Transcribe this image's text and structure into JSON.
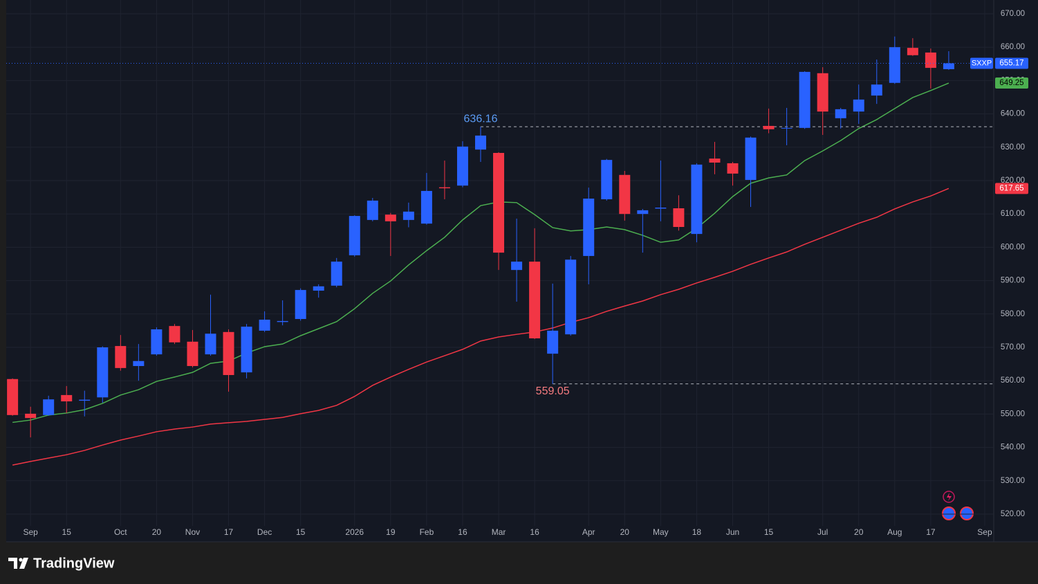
{
  "chart_data": {
    "type": "candlestick",
    "branding": "TradingView",
    "grid": true,
    "xlim": [
      -0.35,
      54.5
    ],
    "xticks": [
      {
        "value": 1,
        "label": "Sep"
      },
      {
        "value": 3,
        "label": "15"
      },
      {
        "value": 6,
        "label": "Oct"
      },
      {
        "value": 8,
        "label": "20"
      },
      {
        "value": 10,
        "label": "Nov"
      },
      {
        "value": 12,
        "label": "17"
      },
      {
        "value": 14,
        "label": "Dec"
      },
      {
        "value": 16,
        "label": "15"
      },
      {
        "value": 19,
        "label": "2026"
      },
      {
        "value": 21,
        "label": "19"
      },
      {
        "value": 23,
        "label": "Feb"
      },
      {
        "value": 25,
        "label": "16"
      },
      {
        "value": 27,
        "label": "Mar"
      },
      {
        "value": 29,
        "label": "16"
      },
      {
        "value": 32,
        "label": "Apr"
      },
      {
        "value": 34,
        "label": "20"
      },
      {
        "value": 36,
        "label": "May"
      },
      {
        "value": 38,
        "label": "18"
      },
      {
        "value": 40,
        "label": "Jun"
      },
      {
        "value": 42,
        "label": "15"
      },
      {
        "value": 45,
        "label": "Jul"
      },
      {
        "value": 47,
        "label": "20"
      },
      {
        "value": 49,
        "label": "Aug"
      },
      {
        "value": 51,
        "label": "17"
      },
      {
        "value": 54,
        "label": "Sep"
      }
    ],
    "ylim": [
      516.47,
      674.15
    ],
    "yticks": [
      {
        "value": 520,
        "label": "520.00"
      },
      {
        "value": 530,
        "label": "530.00"
      },
      {
        "value": 540,
        "label": "540.00"
      },
      {
        "value": 550,
        "label": "550.00"
      },
      {
        "value": 560,
        "label": "560.00"
      },
      {
        "value": 570,
        "label": "570.00"
      },
      {
        "value": 580,
        "label": "580.00"
      },
      {
        "value": 590,
        "label": "590.00"
      },
      {
        "value": 600,
        "label": "600.00"
      },
      {
        "value": 610,
        "label": "610.00"
      },
      {
        "value": 620,
        "label": "620.00"
      },
      {
        "value": 630,
        "label": "630.00"
      },
      {
        "value": 640,
        "label": "640.00"
      },
      {
        "value": 650,
        "label": "650.00"
      },
      {
        "value": 660,
        "label": "660.00"
      },
      {
        "value": 670,
        "label": "670.00"
      }
    ],
    "series": [
      {
        "name": "SXXP",
        "color_up": "#2962ff",
        "color_down": "#f23645",
        "open": [
          560.5,
          550.1,
          549.7,
          555.7,
          554.0,
          555.0,
          570.4,
          564.4,
          567.9,
          576.4,
          571.7,
          567.9,
          574.6,
          562.5,
          575.0,
          577.6,
          578.5,
          587.0,
          588.5,
          597.6,
          608.2,
          609.8,
          608.2,
          607.1,
          618.0,
          618.5,
          629.3,
          628.3,
          593.2,
          595.7,
          568.1,
          573.9,
          597.4,
          614.4,
          621.7,
          610.0,
          611.6,
          611.7,
          604.0,
          626.6,
          625.2,
          620.2,
          636.4,
          635.6,
          635.8,
          652.2,
          638.7,
          640.7,
          645.5,
          649.3,
          659.8,
          658.4,
          653.4
        ],
        "high": [
          560.7,
          552.2,
          555.5,
          558.4,
          557.0,
          570.3,
          573.7,
          571.0,
          576.0,
          577.0,
          575.2,
          585.8,
          575.4,
          577.0,
          580.8,
          584.1,
          587.7,
          588.9,
          596.8,
          609.6,
          614.8,
          610.3,
          613.4,
          622.3,
          626.0,
          631.8,
          636.16,
          628.5,
          608.6,
          605.7,
          589.1,
          597.4,
          617.9,
          626.5,
          622.9,
          611.5,
          626.0,
          615.6,
          625.2,
          631.6,
          625.6,
          633.2,
          641.6,
          641.8,
          652.8,
          654.0,
          641.8,
          648.8,
          656.3,
          663.2,
          662.7,
          659.6,
          658.8
        ],
        "low": [
          549.5,
          543.0,
          549.5,
          550.3,
          549.3,
          553.4,
          563.0,
          560.0,
          567.5,
          571.0,
          564.0,
          567.5,
          556.7,
          560.7,
          574.6,
          576.6,
          578.0,
          584.9,
          588.0,
          597.2,
          607.8,
          597.4,
          606.0,
          606.8,
          614.4,
          618.0,
          625.6,
          593.2,
          583.7,
          572.5,
          559.05,
          573.5,
          588.9,
          614.0,
          608.0,
          598.4,
          607.8,
          605.0,
          601.5,
          621.9,
          618.5,
          612.1,
          634.2,
          630.6,
          635.5,
          633.7,
          635.6,
          637.0,
          643.0,
          649.0,
          657.4,
          647.6,
          653.2
        ],
        "close": [
          549.7,
          548.8,
          554.4,
          553.8,
          554.3,
          570.0,
          563.8,
          565.9,
          575.4,
          571.5,
          564.4,
          574.1,
          561.7,
          576.2,
          578.3,
          577.9,
          587.2,
          588.3,
          595.7,
          609.4,
          614.0,
          607.8,
          610.7,
          616.9,
          617.7,
          630.2,
          633.5,
          598.4,
          595.7,
          572.7,
          575.0,
          596.3,
          614.6,
          626.2,
          610.0,
          611.1,
          611.9,
          606.1,
          624.8,
          625.4,
          622.1,
          632.9,
          635.4,
          635.8,
          652.6,
          640.7,
          641.4,
          644.3,
          648.8,
          660.0,
          657.6,
          653.8,
          655.17
        ]
      }
    ],
    "lines": [
      {
        "color": "#4caf50",
        "label_color": "#000000",
        "values": [
          547.5,
          548.2,
          549.7,
          550.3,
          551.3,
          553.2,
          555.7,
          557.3,
          559.8,
          561.1,
          562.5,
          565.2,
          565.9,
          568.3,
          570.2,
          571.0,
          573.5,
          575.6,
          577.7,
          581.6,
          586.2,
          589.9,
          594.7,
          599.0,
          603.0,
          608.2,
          612.5,
          613.6,
          613.4,
          609.8,
          605.9,
          604.9,
          605.3,
          606.1,
          605.3,
          603.6,
          601.5,
          602.2,
          605.7,
          610.2,
          615.2,
          619.2,
          620.8,
          621.7,
          626.0,
          628.9,
          632.0,
          635.6,
          638.3,
          641.6,
          644.9,
          647.0,
          649.25
        ]
      },
      {
        "color": "#f23645",
        "label_color": "#ffffff",
        "values": [
          534.7,
          535.8,
          536.8,
          537.8,
          539.1,
          540.7,
          542.2,
          543.4,
          544.7,
          545.5,
          546.1,
          547.0,
          547.4,
          547.8,
          548.4,
          549.0,
          550.1,
          551.1,
          552.6,
          555.3,
          558.6,
          561.1,
          563.4,
          565.6,
          567.5,
          569.4,
          571.9,
          573.1,
          573.9,
          574.6,
          575.8,
          577.5,
          578.9,
          580.8,
          582.4,
          583.9,
          585.8,
          587.4,
          589.3,
          591.0,
          592.8,
          594.9,
          596.8,
          598.6,
          600.9,
          603.0,
          605.1,
          607.2,
          609.0,
          611.5,
          613.6,
          615.4,
          617.65
        ]
      }
    ],
    "annotations": [
      {
        "value": 636.16,
        "candle": 26,
        "color": "#5b9cf6",
        "position": "above"
      },
      {
        "value": 559.05,
        "candle": 30,
        "color": "#f77c80",
        "position": "below"
      }
    ]
  }
}
